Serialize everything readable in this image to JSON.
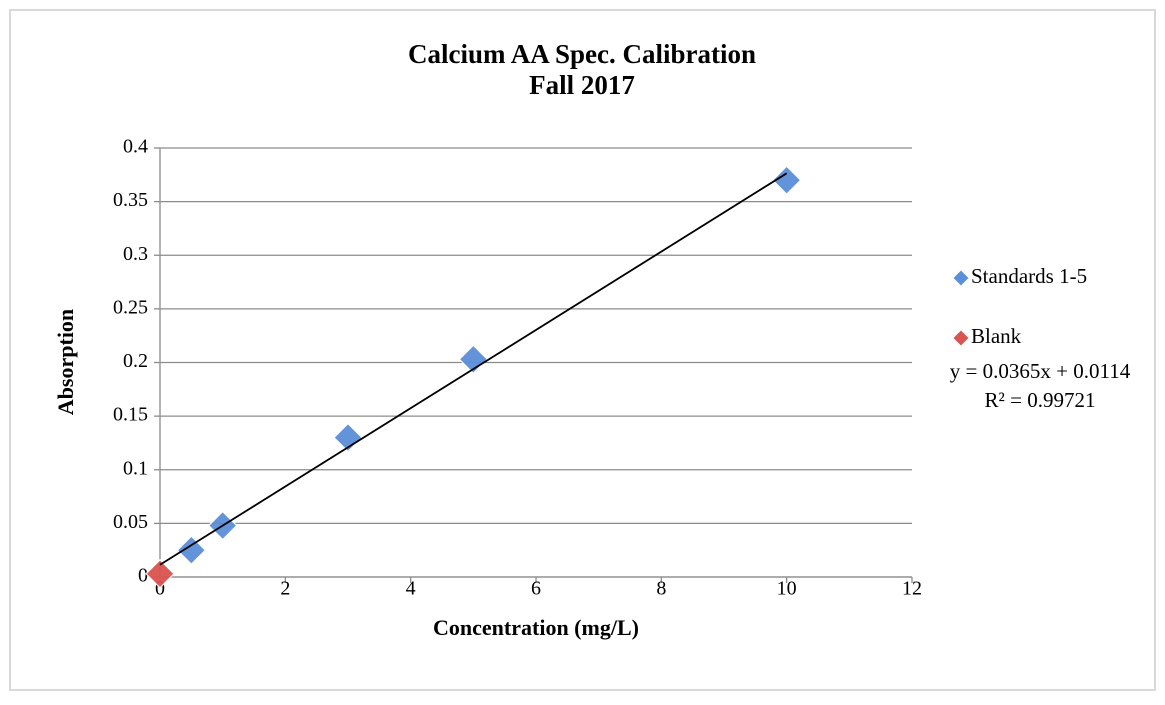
{
  "chart_data": {
    "type": "scatter",
    "title": "Calcium AA Spec. Calibration",
    "subtitle": "Fall 2017",
    "x_label": "Concentration (mg/L)",
    "y_label": "Absorption",
    "xlim": [
      0,
      12
    ],
    "xticks": [
      0,
      2,
      4,
      6,
      8,
      10,
      12
    ],
    "ylim": [
      0,
      0.4
    ],
    "yticks": [
      0,
      0.05,
      0.1,
      0.15,
      0.2,
      0.25,
      0.3,
      0.35,
      0.4
    ],
    "grid": true,
    "legend": "right",
    "series": [
      {
        "name": "Standards 1-5",
        "color": "#5b8fd9",
        "x": [
          0.5,
          1,
          3,
          5,
          10
        ],
        "values": [
          0.025,
          0.048,
          0.13,
          0.203,
          0.37
        ]
      },
      {
        "name": "Blank",
        "color": "#d9534f",
        "x": [
          0
        ],
        "values": [
          0.003
        ]
      }
    ],
    "trendline": {
      "slope": 0.0365,
      "intercept": 0.0114,
      "equation": "y = 0.0365x + 0.0114",
      "r_squared": "R² = 0.99721"
    }
  }
}
